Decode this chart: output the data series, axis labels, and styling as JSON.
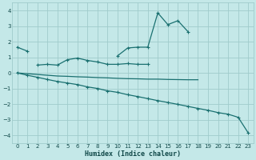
{
  "xlabel": "Humidex (Indice chaleur)",
  "background_color": "#c4e8e8",
  "grid_color": "#a0cccc",
  "line_color": "#1a7070",
  "xlim": [
    -0.5,
    23.5
  ],
  "ylim": [
    -4.5,
    4.5
  ],
  "yticks": [
    -4,
    -3,
    -2,
    -1,
    0,
    1,
    2,
    3,
    4
  ],
  "xticks": [
    0,
    1,
    2,
    3,
    4,
    5,
    6,
    7,
    8,
    9,
    10,
    11,
    12,
    13,
    14,
    15,
    16,
    17,
    18,
    19,
    20,
    21,
    22,
    23
  ],
  "line1_x": [
    0,
    1,
    10,
    11,
    12,
    13,
    14,
    15,
    16,
    17
  ],
  "line1_y": [
    1.65,
    1.4,
    1.1,
    1.6,
    1.65,
    1.65,
    3.85,
    3.1,
    3.35,
    2.65
  ],
  "line1_gaps": [
    [
      1,
      10
    ]
  ],
  "line2_x": [
    2,
    3,
    4,
    5,
    6,
    7,
    8,
    9,
    10,
    11,
    12,
    13
  ],
  "line2_y": [
    0.5,
    0.55,
    0.5,
    0.85,
    0.95,
    0.8,
    0.7,
    0.55,
    0.55,
    0.6,
    0.55,
    0.55
  ],
  "line3_x": [
    0,
    1,
    2,
    3,
    4,
    5,
    6,
    7,
    8,
    9,
    10,
    11,
    12,
    13,
    14,
    15,
    16,
    17,
    18
  ],
  "line3_y": [
    0.0,
    -0.05,
    -0.1,
    -0.15,
    -0.2,
    -0.22,
    -0.25,
    -0.27,
    -0.3,
    -0.32,
    -0.35,
    -0.37,
    -0.38,
    -0.4,
    -0.4,
    -0.42,
    -0.43,
    -0.44,
    -0.44
  ],
  "line4_x": [
    0,
    1,
    2,
    3,
    4,
    5,
    6,
    7,
    8,
    9,
    10,
    11,
    12,
    13,
    14,
    15,
    16,
    17,
    18,
    19,
    20,
    21,
    22,
    23
  ],
  "line4_y": [
    0.0,
    -0.15,
    -0.28,
    -0.42,
    -0.55,
    -0.65,
    -0.75,
    -0.9,
    -1.0,
    -1.15,
    -1.25,
    -1.4,
    -1.52,
    -1.65,
    -1.78,
    -1.9,
    -2.02,
    -2.15,
    -2.28,
    -2.4,
    -2.55,
    -2.65,
    -2.85,
    -3.85
  ]
}
